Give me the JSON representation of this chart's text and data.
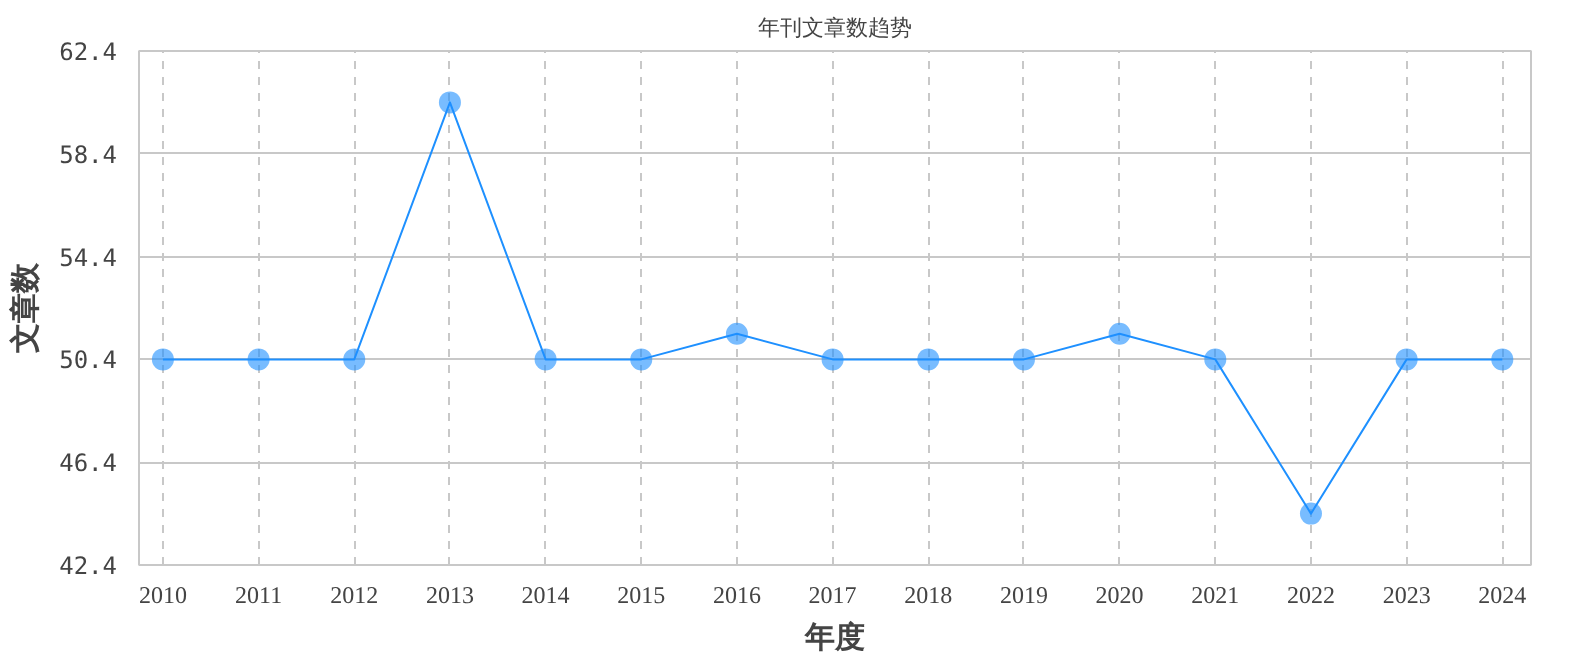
{
  "chart_data": {
    "type": "line",
    "title": "年刊文章数趋势",
    "xlabel": "年度",
    "ylabel": "文章数",
    "categories": [
      "2010",
      "2011",
      "2012",
      "2013",
      "2014",
      "2015",
      "2016",
      "2017",
      "2018",
      "2019",
      "2020",
      "2021",
      "2022",
      "2023",
      "2024"
    ],
    "series": [
      {
        "color": "#1e90ff",
        "values": [
          50.4,
          50.4,
          50.4,
          60.4,
          50.4,
          50.4,
          51.4,
          50.4,
          50.4,
          50.4,
          51.4,
          50.4,
          44.4,
          50.4,
          50.4
        ]
      }
    ],
    "ylim": [
      42.4,
      62.4
    ],
    "yticks": [
      42.4,
      46.4,
      50.4,
      54.4,
      58.4,
      62.4
    ],
    "grid": true,
    "marker": "circle",
    "line_style": "solid"
  }
}
